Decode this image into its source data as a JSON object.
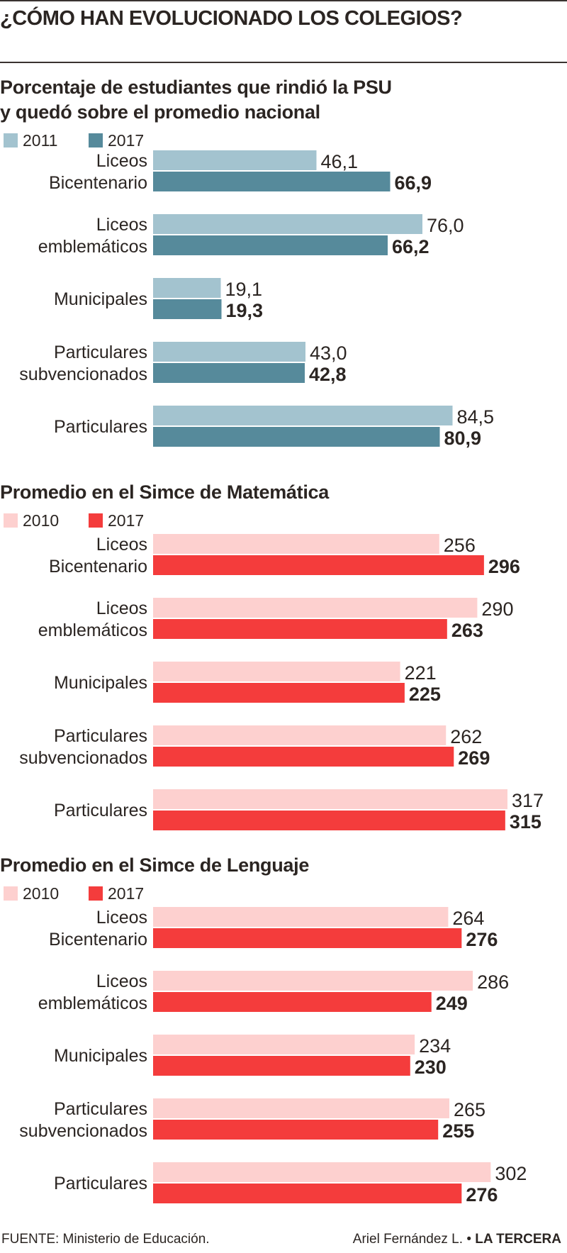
{
  "header": {
    "title": "¿CÓMO HAN EVOLUCIONADO LOS COLEGIOS?"
  },
  "charts": [
    {
      "title": "Porcentaje de estudiantes que rindió la PSU y quedó sobre el promedio nacional",
      "legend": [
        {
          "label": "2011",
          "color": "#a3c3cf"
        },
        {
          "label": "2017",
          "color": "#568a9b"
        }
      ]
    },
    {
      "title": "Promedio en el Simce de Matemática",
      "legend": [
        {
          "label": "2010",
          "color": "#fdd0cf"
        },
        {
          "label": "2017",
          "color": "#f43c3c"
        }
      ]
    },
    {
      "title": "Promedio en el Simce de Lenguaje",
      "legend": [
        {
          "label": "2010",
          "color": "#fdd0cf"
        },
        {
          "label": "2017",
          "color": "#f43c3c"
        }
      ]
    }
  ],
  "chart_data": [
    {
      "type": "bar",
      "orientation": "horizontal",
      "title": "Porcentaje de estudiantes que rindió la PSU y quedó sobre el promedio nacional",
      "categories": [
        [
          "Liceos",
          "Bicentenario"
        ],
        [
          "Liceos",
          "emblemáticos"
        ],
        [
          "Municipales"
        ],
        [
          "Particulares",
          "subvencionados"
        ],
        [
          "Particulares"
        ]
      ],
      "series": [
        {
          "name": "2011",
          "color": "#a3c3cf",
          "values": [
            46.1,
            76.0,
            19.1,
            43.0,
            84.5
          ],
          "labels": [
            "46,1",
            "76,0",
            "19,1",
            "43,0",
            "84,5"
          ]
        },
        {
          "name": "2017",
          "color": "#568a9b",
          "values": [
            66.9,
            66.2,
            19.3,
            42.8,
            80.9
          ],
          "labels": [
            "66,9",
            "66,2",
            "19,3",
            "42,8",
            "80,9"
          ]
        }
      ],
      "xlim": [
        0,
        100
      ],
      "grid": false,
      "legend_position": "top-left"
    },
    {
      "type": "bar",
      "orientation": "horizontal",
      "title": "Promedio en el Simce de Matemática",
      "categories": [
        [
          "Liceos",
          "Bicentenario"
        ],
        [
          "Liceos",
          "emblemáticos"
        ],
        [
          "Municipales"
        ],
        [
          "Particulares",
          "subvencionados"
        ],
        [
          "Particulares"
        ]
      ],
      "series": [
        {
          "name": "2010",
          "color": "#fdd0cf",
          "values": [
            256,
            290,
            221,
            262,
            317
          ],
          "labels": [
            "256",
            "290",
            "221",
            "262",
            "317"
          ]
        },
        {
          "name": "2017",
          "color": "#f43c3c",
          "values": [
            296,
            263,
            225,
            269,
            315
          ],
          "labels": [
            "296",
            "263",
            "225",
            "269",
            "315"
          ]
        }
      ],
      "xlim": [
        0,
        317
      ],
      "grid": false,
      "legend_position": "top-left"
    },
    {
      "type": "bar",
      "orientation": "horizontal",
      "title": "Promedio en el Simce de Lenguaje",
      "categories": [
        [
          "Liceos",
          "Bicentenario"
        ],
        [
          "Liceos",
          "emblemáticos"
        ],
        [
          "Municipales"
        ],
        [
          "Particulares",
          "subvencionados"
        ],
        [
          "Particulares"
        ]
      ],
      "series": [
        {
          "name": "2010",
          "color": "#fdd0cf",
          "values": [
            264,
            286,
            234,
            265,
            302
          ],
          "labels": [
            "264",
            "286",
            "234",
            "265",
            "302"
          ]
        },
        {
          "name": "2017",
          "color": "#f43c3c",
          "values": [
            276,
            249,
            230,
            255,
            276
          ],
          "labels": [
            "276",
            "249",
            "230",
            "255",
            "276"
          ]
        }
      ],
      "xlim": [
        0,
        317
      ],
      "grid": false,
      "legend_position": "top-left"
    }
  ],
  "footer": {
    "source": "FUENTE: Ministerio de Educación.",
    "author": "Ariel Fernández L.",
    "separator": "•",
    "brand": "LA TERCERA"
  }
}
